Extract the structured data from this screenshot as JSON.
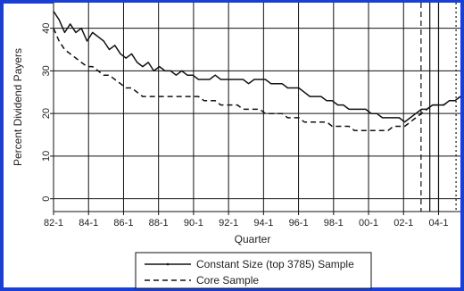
{
  "colors": {
    "frame": "#1a3fd6",
    "plot_bg": "#ffffff",
    "grid": "#111111",
    "series": "#111111",
    "page_bg": "#ffffff"
  },
  "chart_data": {
    "type": "line",
    "xlabel": "Quarter",
    "ylabel": "Percent Dividend Payers",
    "ylim": [
      -3,
      46
    ],
    "y_ticks": [
      0,
      10,
      20,
      30,
      40
    ],
    "x_tick_labels": [
      "82-1",
      "84-1",
      "86-1",
      "88-1",
      "90-1",
      "92-1",
      "94-1",
      "96-1",
      "98-1",
      "00-1",
      "02-1",
      "04-1"
    ],
    "x_quarter_range": [
      "82-1",
      "05-2"
    ],
    "extra_vertical_lines": [
      {
        "quarter": "03-1",
        "style": "dashed"
      },
      {
        "quarter": "03-3",
        "style": "solid"
      },
      {
        "quarter": "04-1",
        "style": "solid"
      },
      {
        "quarter": "05-1",
        "style": "dotted"
      }
    ],
    "grid": true,
    "legend_position": "bottom",
    "series": [
      {
        "name": "Constant Size (top 3785) Sample",
        "style": "solid",
        "values": [
          44,
          42,
          39,
          41,
          39,
          40,
          37,
          39,
          38,
          37,
          35,
          36,
          34,
          33,
          34,
          32,
          31,
          32,
          30,
          31,
          30,
          30,
          29,
          30,
          29,
          29,
          28,
          28,
          28,
          29,
          28,
          28,
          28,
          28,
          28,
          27,
          28,
          28,
          28,
          27,
          27,
          27,
          26,
          26,
          26,
          25,
          24,
          24,
          24,
          23,
          23,
          22,
          22,
          21,
          21,
          21,
          21,
          20,
          20,
          19,
          19,
          19,
          19,
          18,
          19,
          20,
          21,
          21,
          22,
          22,
          22,
          23,
          23,
          24
        ]
      },
      {
        "name": "Core Sample",
        "style": "dashed",
        "values": [
          40,
          37,
          35,
          34,
          33,
          32,
          31,
          31,
          30,
          29,
          29,
          28,
          27,
          26,
          26,
          25,
          24,
          24,
          24,
          24,
          24,
          24,
          24,
          24,
          24,
          24,
          24,
          23,
          23,
          23,
          22,
          22,
          22,
          22,
          21,
          21,
          21,
          21,
          20,
          20,
          20,
          20,
          19,
          19,
          19,
          18,
          18,
          18,
          18,
          18,
          17,
          17,
          17,
          17,
          16,
          16,
          16,
          16,
          16,
          16,
          16,
          17,
          17,
          17,
          18,
          19,
          20,
          21,
          22,
          22,
          22,
          23,
          23,
          24
        ]
      }
    ]
  }
}
